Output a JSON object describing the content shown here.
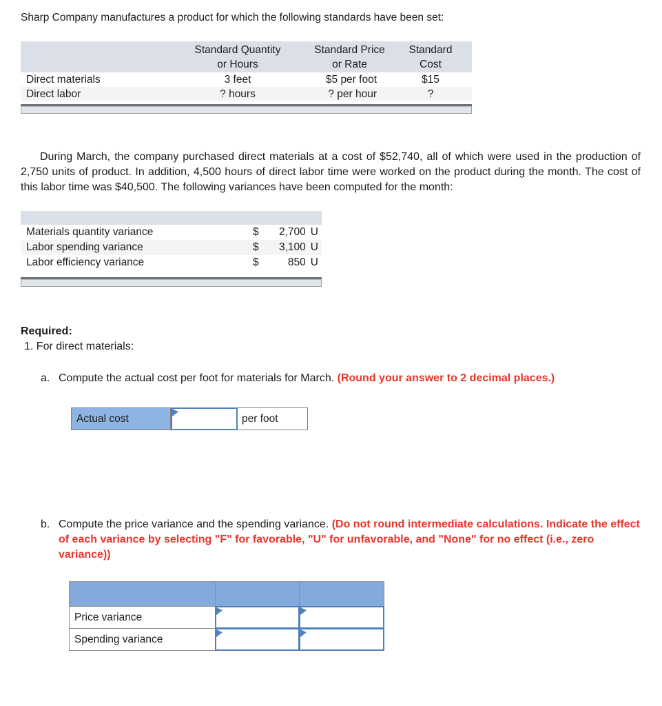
{
  "colors": {
    "accent_blue_border": "#4f81bd",
    "label_cell_blue": "#8db4e2",
    "answer_header_blue": "#82aadd",
    "table_header_gray": "#dbdfe7",
    "alt_row_gray": "#f4f4f4",
    "instruction_red": "#e8352a"
  },
  "intro": "Sharp Company manufactures a product for which the following standards have been set:",
  "standards_table": {
    "header": {
      "qty1": "Standard Quantity",
      "qty2": "or Hours",
      "price1": "Standard Price",
      "price2": "or Rate",
      "cost1": "Standard",
      "cost2": "Cost"
    },
    "rows": [
      {
        "label": "Direct materials",
        "qty": "3 feet",
        "price": "$5 per foot",
        "cost": "$15"
      },
      {
        "label": "Direct labor",
        "qty": "? hours",
        "price": "? per hour",
        "cost": "?"
      }
    ]
  },
  "paragraph": "During March, the company purchased direct materials at a cost of $52,740, all of which were used in the production of 2,750 units of product. In addition, 4,500 hours of direct labor time were worked on the product during the month. The cost of this labor time was $40,500. The following variances have been computed for the month:",
  "variances_table": {
    "rows": [
      {
        "label": "Materials quantity variance",
        "currency": "$",
        "amount": "2,700",
        "effect": "U"
      },
      {
        "label": "Labor spending variance",
        "currency": "$",
        "amount": "3,100",
        "effect": "U"
      },
      {
        "label": "Labor efficiency variance",
        "currency": "$",
        "amount": "850",
        "effect": "U"
      }
    ]
  },
  "required": {
    "heading": "Required:",
    "item1": "1. For direct materials:",
    "part_a": {
      "marker": "a.",
      "text": "Compute the actual cost per foot for materials for March.",
      "note": "(Round your answer to 2 decimal places.)"
    },
    "part_b": {
      "marker": "b.",
      "text": "Compute the price variance and the spending variance.",
      "note": "(Do not round intermediate calculations. Indicate the effect of each variance by selecting \"F\" for favorable, \"U\" for unfavorable, and \"None\" for no effect (i.e., zero variance))"
    }
  },
  "actual_cost_row": {
    "label": "Actual cost",
    "input_value": "",
    "suffix": "per foot"
  },
  "answer_table": {
    "rows": [
      {
        "label": "Price variance",
        "value": "",
        "effect": ""
      },
      {
        "label": "Spending variance",
        "value": "",
        "effect": ""
      }
    ]
  }
}
